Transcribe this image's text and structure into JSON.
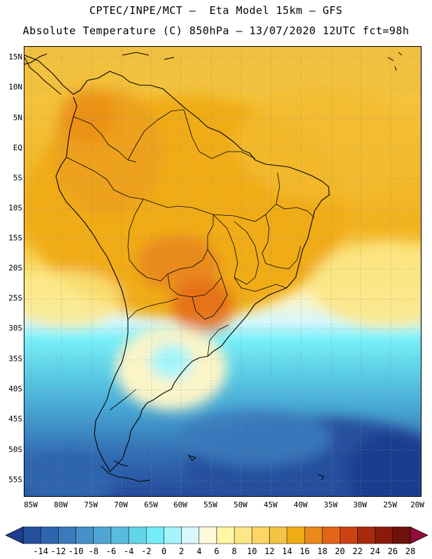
{
  "header": {
    "line1": "CPTEC/INPE/MCT –  Eta Model 15km – GFS",
    "line2": "Absolute Temperature (C) 850hPa – 13/07/2020 12UTC fct=98h"
  },
  "map": {
    "lat_labels": [
      "15N",
      "10N",
      "5N",
      "EQ",
      "5S",
      "10S",
      "15S",
      "20S",
      "25S",
      "30S",
      "35S",
      "40S",
      "45S",
      "50S",
      "55S"
    ],
    "lon_labels": [
      "85W",
      "80W",
      "75W",
      "70W",
      "65W",
      "60W",
      "55W",
      "50W",
      "45W",
      "40W",
      "35W",
      "30W",
      "25W",
      "20W"
    ]
  },
  "colorbar": {
    "labels": [
      "-14",
      "-12",
      "-10",
      "-8",
      "-6",
      "-4",
      "-2",
      "0",
      "2",
      "4",
      "6",
      "8",
      "10",
      "12",
      "14",
      "16",
      "18",
      "20",
      "22",
      "24",
      "26",
      "28"
    ],
    "colors": [
      "#1f3d8f",
      "#25509e",
      "#2f65ad",
      "#3a7abb",
      "#4590c6",
      "#4fa6d2",
      "#58bcdd",
      "#63d4ea",
      "#74ecf7",
      "#a4f5fb",
      "#d8f7fb",
      "#fff9dc",
      "#fdf7a6",
      "#fde785",
      "#fbd667",
      "#f5c344",
      "#f0ac16",
      "#e98a1a",
      "#e3651a",
      "#cc4313",
      "#a82a0e",
      "#8a1a0a",
      "#6f120a",
      "#900c3f"
    ]
  }
}
